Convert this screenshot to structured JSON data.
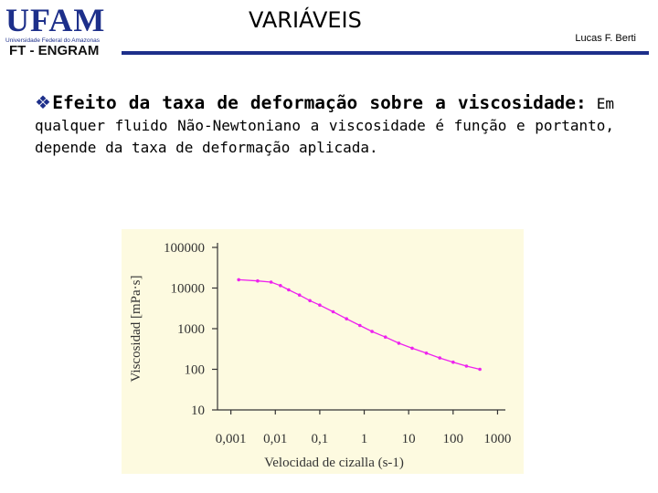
{
  "header": {
    "logo_text": "UFAM",
    "logo_subtitle": "Universidade Federal do Amazonas",
    "department": "FT - ENGRAM",
    "title": "VARIÁVEIS",
    "author": "Lucas F. Berti",
    "accent_color": "#1d2f8a"
  },
  "body": {
    "bullet_icon": "diamond-bullet-icon",
    "bullet_symbol": "❖",
    "heading": "Efeito da taxa de deformação sobre a viscosidade:",
    "text": " Em qualquer fluido Não-Newtoniano a viscosidade é função e portanto, depende da taxa de deformação aplicada."
  },
  "chart_data": {
    "type": "line",
    "x_scale": "log",
    "y_scale": "log",
    "xlabel": "Velocidad de cizalla (s-1)",
    "ylabel": "Viscosidad [mPa·s]",
    "xlim": [
      0.0005,
      1500
    ],
    "ylim": [
      10,
      100000
    ],
    "x_ticks": [
      "0,001",
      "0,01",
      "0,1",
      "1",
      "10",
      "100",
      "1000"
    ],
    "y_ticks": [
      "10",
      "100",
      "1000",
      "10000",
      "100000"
    ],
    "grid": false,
    "background": "#fdfae0",
    "series": [
      {
        "color": "#ee22ee",
        "x": [
          0.0015,
          0.004,
          0.008,
          0.013,
          0.02,
          0.035,
          0.06,
          0.1,
          0.2,
          0.4,
          0.8,
          1.5,
          3,
          6,
          12,
          25,
          50,
          100,
          200,
          400
        ],
        "y": [
          16000,
          15000,
          14000,
          11500,
          9000,
          6700,
          4900,
          3800,
          2600,
          1750,
          1200,
          850,
          620,
          440,
          330,
          250,
          190,
          150,
          120,
          100
        ]
      }
    ]
  }
}
